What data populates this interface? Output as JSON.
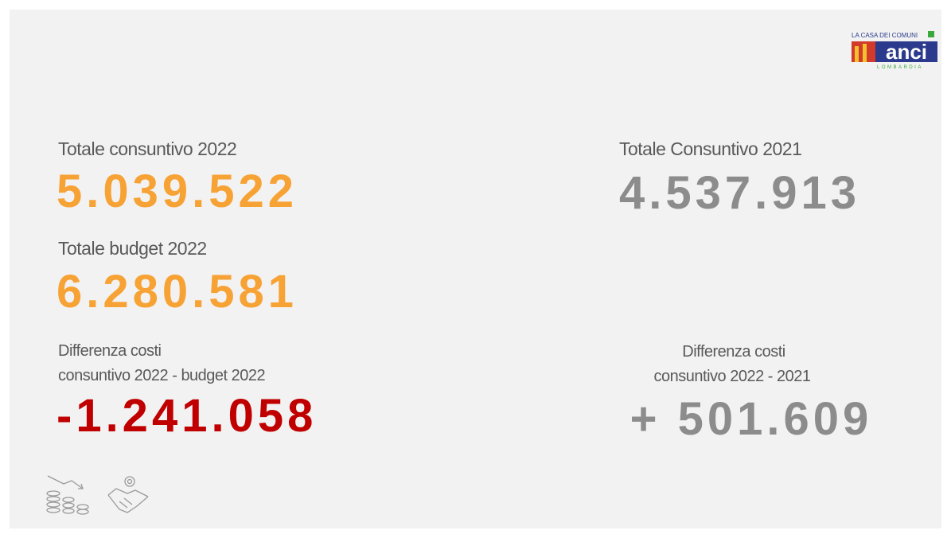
{
  "logo": {
    "top": "LA CASA DEI COMUNI",
    "name": "anci",
    "region": "LOMBARDIA"
  },
  "left": [
    {
      "label": "Totale consuntivo 2022",
      "value": "5.039.522"
    },
    {
      "label": "Totale budget 2022",
      "value": "6.280.581"
    },
    {
      "label": [
        "Differenza costi",
        "consuntivo 2022 - budget 2022"
      ],
      "value": "-1.241.058"
    }
  ],
  "right": [
    {
      "label": "Totale Consuntivo 2021",
      "value": "4.537.913"
    },
    {
      "label": [
        "Differenza costi",
        "consuntivo 2022 - 2021"
      ],
      "value": "+ 501.609"
    }
  ]
}
